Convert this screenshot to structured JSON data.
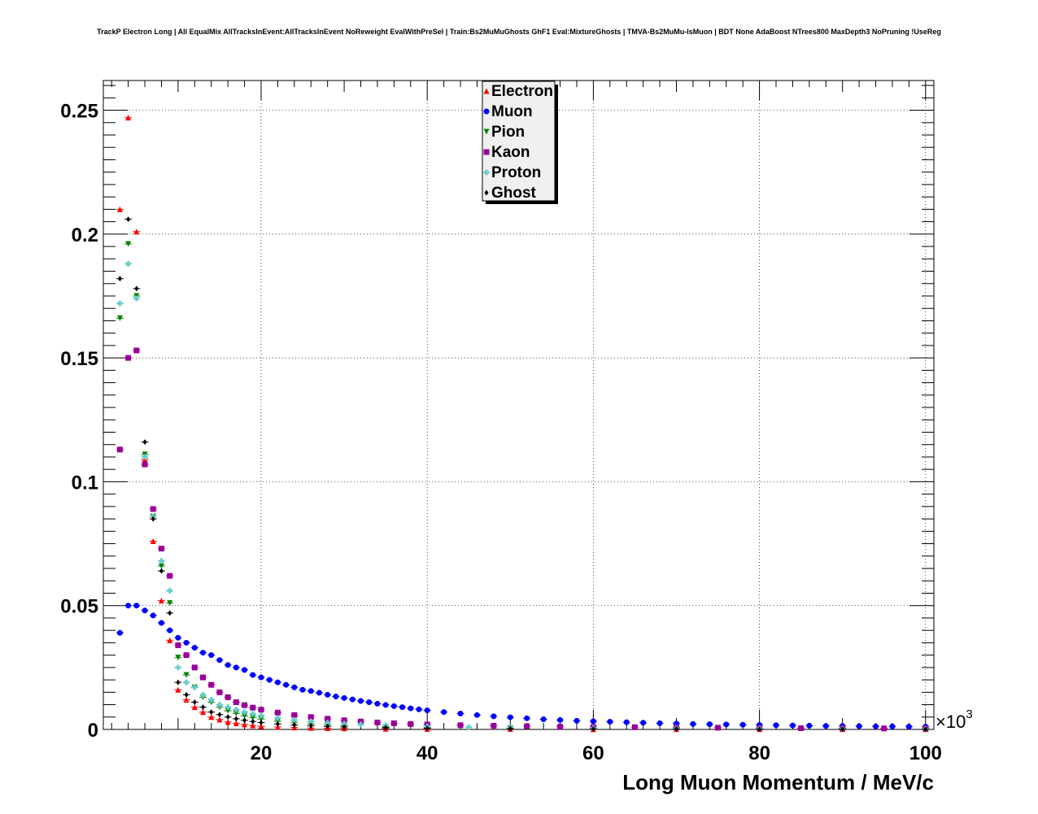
{
  "title": "TrackP Electron Long | All EqualMix AllTracksInEvent:AllTracksInEvent NoReweight EvalWithPreSel | Train:Bs2MuMuGhosts GhF1 Eval:MixtureGhosts | TMVA-Bs2MuMu-IsMuon | BDT None AdaBoost NTrees800 MaxDepth3 NoPruning !UseReg",
  "chart_data": {
    "type": "scatter",
    "title": "TrackP Electron Long | All EqualMix AllTracksInEvent:AllTracksInEvent NoReweight EvalWithPreSel | Train:Bs2MuMuGhosts GhF1 Eval:MixtureGhosts | TMVA-Bs2MuMu-IsMuon | BDT None AdaBoost NTrees800 MaxDepth3 NoPruning !UseReg",
    "xlabel": "Long Muon Momentum / MeV/c",
    "ylabel": "",
    "x_multiplier_label": "×10",
    "x_multiplier_exponent": "3",
    "xlim": [
      1,
      101
    ],
    "ylim": [
      0,
      0.262
    ],
    "x_ticks": [
      20,
      40,
      60,
      80,
      100
    ],
    "x_tick_labels": [
      "20",
      "40",
      "60",
      "80",
      "100"
    ],
    "y_ticks": [
      0,
      0.05,
      0.1,
      0.15,
      0.2,
      0.25
    ],
    "y_tick_labels": [
      "0",
      "0.05",
      "0.1",
      "0.15",
      "0.2",
      "0.25"
    ],
    "grid": true,
    "legend_position": "top-center",
    "series": [
      {
        "name": "Electron",
        "color": "#ff0000",
        "marker": "triangle-up",
        "points": [
          [
            3,
            0.21
          ],
          [
            4,
            0.247
          ],
          [
            5,
            0.201
          ],
          [
            6,
            0.109
          ],
          [
            7,
            0.076
          ],
          [
            8,
            0.052
          ],
          [
            9,
            0.036
          ],
          [
            10,
            0.016
          ],
          [
            11,
            0.012
          ],
          [
            12,
            0.009
          ],
          [
            13,
            0.007
          ],
          [
            14,
            0.005
          ],
          [
            15,
            0.004
          ],
          [
            16,
            0.003
          ],
          [
            17,
            0.0025
          ],
          [
            18,
            0.002
          ],
          [
            19,
            0.0016
          ],
          [
            20,
            0.0013
          ],
          [
            22,
            0.001
          ],
          [
            24,
            0.0008
          ],
          [
            26,
            0.0006
          ],
          [
            28,
            0.0005
          ],
          [
            30,
            0.0004
          ],
          [
            35,
            0.0003
          ],
          [
            40,
            0.0002
          ],
          [
            50,
            0.0002
          ],
          [
            60,
            0.0001
          ],
          [
            70,
            0.0001
          ],
          [
            80,
            0.0001
          ],
          [
            90,
            0.0001
          ],
          [
            100,
            0.0001
          ]
        ]
      },
      {
        "name": "Muon",
        "color": "#0000ff",
        "marker": "circle",
        "points": [
          [
            3,
            0.039
          ],
          [
            4,
            0.05
          ],
          [
            5,
            0.05
          ],
          [
            6,
            0.048
          ],
          [
            7,
            0.046
          ],
          [
            8,
            0.043
          ],
          [
            9,
            0.04
          ],
          [
            10,
            0.037
          ],
          [
            11,
            0.035
          ],
          [
            12,
            0.033
          ],
          [
            13,
            0.031
          ],
          [
            14,
            0.03
          ],
          [
            15,
            0.028
          ],
          [
            16,
            0.026
          ],
          [
            17,
            0.025
          ],
          [
            18,
            0.024
          ],
          [
            19,
            0.022
          ],
          [
            20,
            0.021
          ],
          [
            21,
            0.02
          ],
          [
            22,
            0.019
          ],
          [
            23,
            0.018
          ],
          [
            24,
            0.017
          ],
          [
            25,
            0.016
          ],
          [
            26,
            0.0155
          ],
          [
            27,
            0.0148
          ],
          [
            28,
            0.014
          ],
          [
            29,
            0.0133
          ],
          [
            30,
            0.0127
          ],
          [
            31,
            0.0121
          ],
          [
            32,
            0.0115
          ],
          [
            33,
            0.011
          ],
          [
            34,
            0.0104
          ],
          [
            35,
            0.0099
          ],
          [
            36,
            0.0094
          ],
          [
            37,
            0.009
          ],
          [
            38,
            0.0085
          ],
          [
            39,
            0.0081
          ],
          [
            40,
            0.0077
          ],
          [
            42,
            0.007
          ],
          [
            44,
            0.0064
          ],
          [
            46,
            0.0058
          ],
          [
            48,
            0.0053
          ],
          [
            50,
            0.0049
          ],
          [
            52,
            0.0045
          ],
          [
            54,
            0.0041
          ],
          [
            56,
            0.0038
          ],
          [
            58,
            0.0035
          ],
          [
            60,
            0.0033
          ],
          [
            62,
            0.0031
          ],
          [
            64,
            0.0029
          ],
          [
            66,
            0.0027
          ],
          [
            68,
            0.0025
          ],
          [
            70,
            0.0024
          ],
          [
            72,
            0.0022
          ],
          [
            74,
            0.0021
          ],
          [
            76,
            0.002
          ],
          [
            78,
            0.0019
          ],
          [
            80,
            0.0018
          ],
          [
            82,
            0.0017
          ],
          [
            84,
            0.0016
          ],
          [
            86,
            0.0015
          ],
          [
            88,
            0.0014
          ],
          [
            90,
            0.0014
          ],
          [
            92,
            0.0013
          ],
          [
            94,
            0.0012
          ],
          [
            96,
            0.0012
          ],
          [
            98,
            0.0011
          ],
          [
            100,
            0.0011
          ]
        ]
      },
      {
        "name": "Pion",
        "color": "#008000",
        "marker": "triangle-down",
        "points": [
          [
            3,
            0.166
          ],
          [
            4,
            0.196
          ],
          [
            5,
            0.175
          ],
          [
            6,
            0.111
          ],
          [
            7,
            0.086
          ],
          [
            8,
            0.066
          ],
          [
            9,
            0.051
          ],
          [
            10,
            0.029
          ],
          [
            11,
            0.022
          ],
          [
            12,
            0.017
          ],
          [
            13,
            0.013
          ],
          [
            14,
            0.011
          ],
          [
            15,
            0.009
          ],
          [
            16,
            0.0075
          ],
          [
            17,
            0.0065
          ],
          [
            18,
            0.0055
          ],
          [
            19,
            0.0048
          ],
          [
            20,
            0.0042
          ],
          [
            22,
            0.0033
          ],
          [
            24,
            0.0027
          ],
          [
            26,
            0.0022
          ],
          [
            28,
            0.0018
          ],
          [
            30,
            0.0015
          ],
          [
            35,
            0.001
          ],
          [
            40,
            0.0007
          ],
          [
            50,
            0.0005
          ],
          [
            60,
            0.0003
          ],
          [
            70,
            0.0002
          ],
          [
            80,
            0.0002
          ],
          [
            90,
            0.0001
          ],
          [
            100,
            0.0001
          ]
        ]
      },
      {
        "name": "Kaon",
        "color": "#990099",
        "marker": "square",
        "points": [
          [
            3,
            0.113
          ],
          [
            4,
            0.15
          ],
          [
            5,
            0.153
          ],
          [
            6,
            0.107
          ],
          [
            7,
            0.089
          ],
          [
            8,
            0.073
          ],
          [
            9,
            0.062
          ],
          [
            10,
            0.034
          ],
          [
            11,
            0.03
          ],
          [
            12,
            0.025
          ],
          [
            13,
            0.021
          ],
          [
            14,
            0.018
          ],
          [
            15,
            0.015
          ],
          [
            16,
            0.013
          ],
          [
            17,
            0.011
          ],
          [
            18,
            0.0098
          ],
          [
            19,
            0.0088
          ],
          [
            20,
            0.008
          ],
          [
            22,
            0.0068
          ],
          [
            24,
            0.0058
          ],
          [
            26,
            0.005
          ],
          [
            28,
            0.0043
          ],
          [
            30,
            0.0037
          ],
          [
            32,
            0.0032
          ],
          [
            34,
            0.0028
          ],
          [
            36,
            0.0025
          ],
          [
            38,
            0.0022
          ],
          [
            40,
            0.002
          ],
          [
            44,
            0.0017
          ],
          [
            48,
            0.0015
          ],
          [
            52,
            0.0013
          ],
          [
            56,
            0.0011
          ],
          [
            60,
            0.001
          ],
          [
            65,
            0.0009
          ],
          [
            70,
            0.0008
          ],
          [
            75,
            0.0007
          ],
          [
            80,
            0.0006
          ],
          [
            85,
            0.0005
          ],
          [
            90,
            0.0005
          ],
          [
            95,
            0.0004
          ],
          [
            100,
            0.0004
          ]
        ]
      },
      {
        "name": "Proton",
        "color": "#66cccc",
        "marker": "cross",
        "points": [
          [
            3,
            0.172
          ],
          [
            4,
            0.188
          ],
          [
            5,
            0.174
          ],
          [
            6,
            0.11
          ],
          [
            7,
            0.086
          ],
          [
            8,
            0.068
          ],
          [
            9,
            0.056
          ],
          [
            10,
            0.025
          ],
          [
            11,
            0.019
          ],
          [
            12,
            0.017
          ],
          [
            13,
            0.014
          ],
          [
            14,
            0.012
          ],
          [
            15,
            0.01
          ],
          [
            16,
            0.009
          ],
          [
            17,
            0.008
          ],
          [
            18,
            0.007
          ],
          [
            19,
            0.0063
          ],
          [
            20,
            0.0056
          ],
          [
            22,
            0.0046
          ],
          [
            24,
            0.0038
          ],
          [
            26,
            0.0032
          ],
          [
            28,
            0.0027
          ],
          [
            30,
            0.0023
          ],
          [
            32,
            0.002
          ],
          [
            35,
            0.0016
          ],
          [
            40,
            0.0012
          ],
          [
            45,
            0.0009
          ],
          [
            50,
            0.0007
          ],
          [
            60,
            0.0005
          ],
          [
            70,
            0.0004
          ],
          [
            80,
            0.0003
          ],
          [
            90,
            0.0002
          ],
          [
            100,
            0.0002
          ]
        ]
      },
      {
        "name": "Ghost",
        "color": "#000000",
        "marker": "diamond",
        "points": [
          [
            3,
            0.182
          ],
          [
            4,
            0.206
          ],
          [
            5,
            0.178
          ],
          [
            6,
            0.116
          ],
          [
            7,
            0.085
          ],
          [
            8,
            0.064
          ],
          [
            9,
            0.047
          ],
          [
            10,
            0.019
          ],
          [
            11,
            0.014
          ],
          [
            12,
            0.011
          ],
          [
            13,
            0.009
          ],
          [
            14,
            0.007
          ],
          [
            15,
            0.006
          ],
          [
            16,
            0.005
          ],
          [
            17,
            0.0043
          ],
          [
            18,
            0.0037
          ],
          [
            19,
            0.0032
          ],
          [
            20,
            0.0028
          ],
          [
            22,
            0.0022
          ],
          [
            24,
            0.0018
          ],
          [
            26,
            0.0015
          ],
          [
            28,
            0.0012
          ],
          [
            30,
            0.001
          ],
          [
            35,
            0.0007
          ],
          [
            40,
            0.0005
          ],
          [
            50,
            0.0003
          ],
          [
            60,
            0.0002
          ],
          [
            70,
            0.0002
          ],
          [
            80,
            0.0001
          ],
          [
            90,
            0.0001
          ],
          [
            100,
            0.0001
          ]
        ]
      }
    ]
  }
}
